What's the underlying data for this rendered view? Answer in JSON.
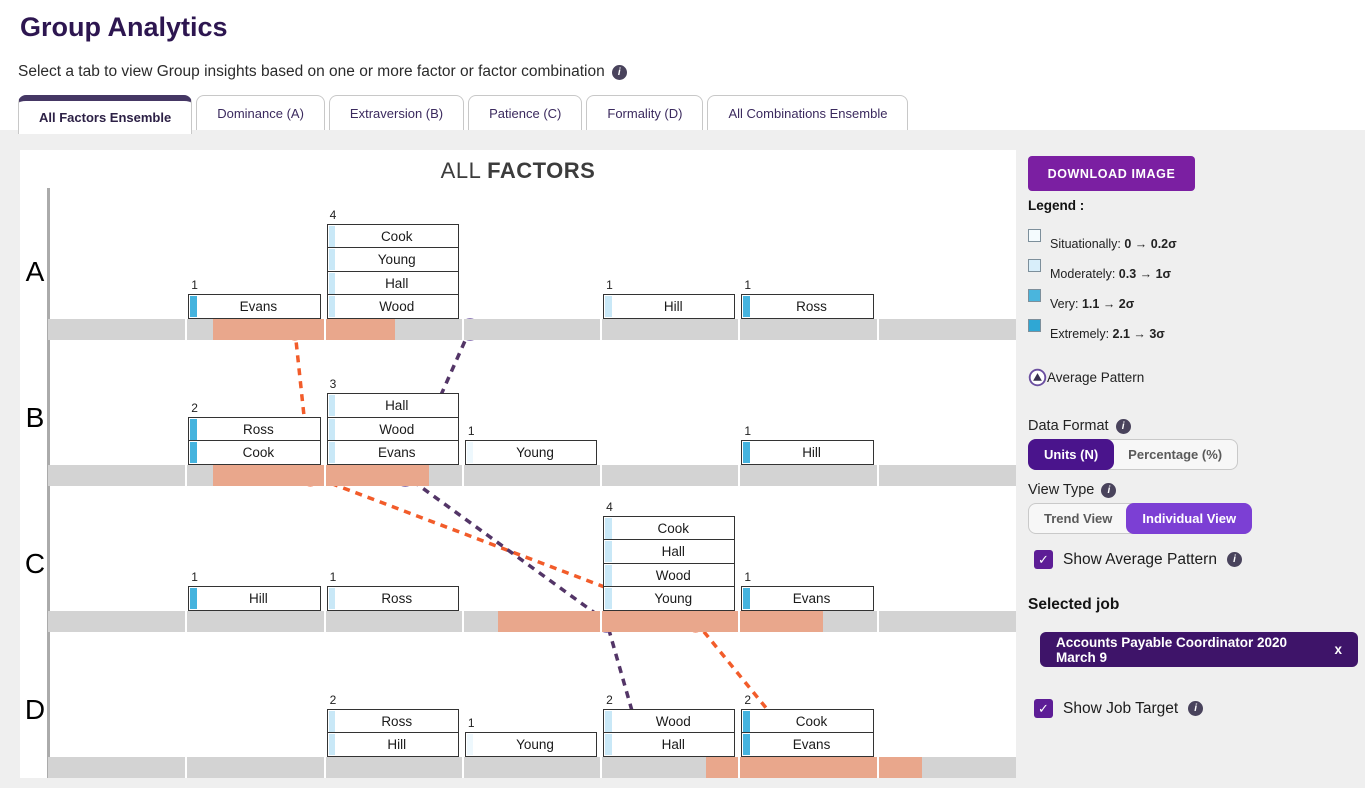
{
  "icons": {
    "info_glyph": "i",
    "check_glyph": "✓"
  },
  "page": {
    "title": "Group Analytics",
    "subtitle": "Select a tab to view Group insights based on one or more factor or factor combination"
  },
  "tabs": [
    {
      "label": "All Factors Ensemble",
      "active": true
    },
    {
      "label": "Dominance (A)",
      "active": false
    },
    {
      "label": "Extraversion (B)",
      "active": false
    },
    {
      "label": "Patience (C)",
      "active": false
    },
    {
      "label": "Formality (D)",
      "active": false
    },
    {
      "label": "All Combinations Ensemble",
      "active": false
    }
  ],
  "chart_data": {
    "type": "distribution-ensemble",
    "title_prefix": "ALL ",
    "title_emphasis": "FACTORS",
    "scale_segments": 7,
    "level_colors": {
      "situationally": "#eef8fd",
      "moderately": "#c9e8f7",
      "very": "#45b3de",
      "extremely": "#2fa7d4"
    },
    "marker_colors": {
      "job_target": "#f25c2a",
      "average_pattern": "#6b4fa0",
      "midpoint": "#1a1a1a"
    },
    "zone_color": "#e9a78c",
    "rows": [
      {
        "factor": "A",
        "groups": [
          {
            "segment": 1,
            "count": 1,
            "names": [
              "Evans"
            ],
            "levels": [
              "very"
            ]
          },
          {
            "segment": 2,
            "count": 4,
            "names": [
              "Cook",
              "Young",
              "Hall",
              "Wood"
            ],
            "levels": [
              "moderately",
              "moderately",
              "moderately",
              "moderately"
            ]
          },
          {
            "segment": 4,
            "count": 1,
            "names": [
              "Hill"
            ],
            "levels": [
              "moderately"
            ]
          },
          {
            "segment": 5,
            "count": 1,
            "names": [
              "Ross"
            ],
            "levels": [
              "very"
            ]
          }
        ],
        "job_target_zone": [
          0.17,
          0.358
        ],
        "job_target_marker": 0.255,
        "average_pattern_marker": 0.436,
        "midpoint_marker": 0.503,
        "midpoint_color": "#1a1a1a"
      },
      {
        "factor": "B",
        "groups": [
          {
            "segment": 1,
            "count": 2,
            "names": [
              "Ross",
              "Cook"
            ],
            "levels": [
              "very",
              "very"
            ]
          },
          {
            "segment": 2,
            "count": 3,
            "names": [
              "Hall",
              "Wood",
              "Evans"
            ],
            "levels": [
              "moderately",
              "moderately",
              "moderately"
            ]
          },
          {
            "segment": 3,
            "count": 1,
            "names": [
              "Young"
            ],
            "levels": [
              "situationally"
            ]
          },
          {
            "segment": 5,
            "count": 1,
            "names": [
              "Hill"
            ],
            "levels": [
              "very"
            ]
          }
        ],
        "job_target_zone": [
          0.17,
          0.394
        ],
        "job_target_marker": 0.271,
        "average_pattern_marker": 0.369,
        "midpoint_marker": 0.503,
        "midpoint_color": "#1a1a1a"
      },
      {
        "factor": "C",
        "groups": [
          {
            "segment": 1,
            "count": 1,
            "names": [
              "Hill"
            ],
            "levels": [
              "very"
            ]
          },
          {
            "segment": 2,
            "count": 1,
            "names": [
              "Ross"
            ],
            "levels": [
              "moderately"
            ]
          },
          {
            "segment": 4,
            "count": 4,
            "names": [
              "Cook",
              "Hall",
              "Wood",
              "Young"
            ],
            "levels": [
              "moderately",
              "moderately",
              "moderately",
              "moderately"
            ]
          },
          {
            "segment": 5,
            "count": 1,
            "names": [
              "Evans"
            ],
            "levels": [
              "very"
            ]
          }
        ],
        "job_target_zone": [
          0.465,
          0.801
        ],
        "job_target_marker": 0.669,
        "average_pattern_marker": 0.577,
        "midpoint_marker": 0.501,
        "midpoint_color": "#6f4231"
      },
      {
        "factor": "D",
        "groups": [
          {
            "segment": 2,
            "count": 2,
            "names": [
              "Ross",
              "Hill"
            ],
            "levels": [
              "moderately",
              "moderately"
            ]
          },
          {
            "segment": 3,
            "count": 1,
            "names": [
              "Young"
            ],
            "levels": [
              "situationally"
            ]
          },
          {
            "segment": 4,
            "count": 2,
            "names": [
              "Wood",
              "Hall"
            ],
            "levels": [
              "moderately",
              "moderately"
            ]
          },
          {
            "segment": 5,
            "count": 2,
            "names": [
              "Cook",
              "Evans"
            ],
            "levels": [
              "very",
              "very"
            ]
          }
        ],
        "job_target_zone": [
          0.68,
          0.903
        ],
        "job_target_marker": 0.792,
        "average_pattern_marker": 0.62,
        "midpoint_marker": 0.503,
        "midpoint_color": "#1a1a1a"
      }
    ]
  },
  "sidebar": {
    "download_button": "DOWNLOAD IMAGE",
    "legend_title": "Legend :",
    "legend_items": [
      {
        "label": "Situationally: ",
        "range": "0 → 0.2σ",
        "color": "#f4fbfe"
      },
      {
        "label": "Moderately: ",
        "range": "0.3 → 1σ",
        "color": "#d8eefa"
      },
      {
        "label": "Very: ",
        "range": "1.1 → 2σ",
        "color": "#4ab5dd"
      },
      {
        "label": "Extremely: ",
        "range": "2.1 → 3σ",
        "color": "#2fa7d4"
      }
    ],
    "average_pattern_label": "Average Pattern",
    "data_format": {
      "label": "Data Format",
      "options": [
        "Units (N)",
        "Percentage (%)"
      ],
      "selected": "Units (N)"
    },
    "view_type": {
      "label": "View Type",
      "options": [
        "Trend View",
        "Individual View"
      ],
      "selected": "Individual View"
    },
    "show_average_pattern": {
      "label": "Show Average Pattern",
      "checked": true
    },
    "selected_job": {
      "heading": "Selected job",
      "value": "Accounts Payable Coordinator 2020 March 9",
      "remove": "x"
    },
    "show_job_target": {
      "label": "Show Job Target",
      "checked": true
    }
  }
}
